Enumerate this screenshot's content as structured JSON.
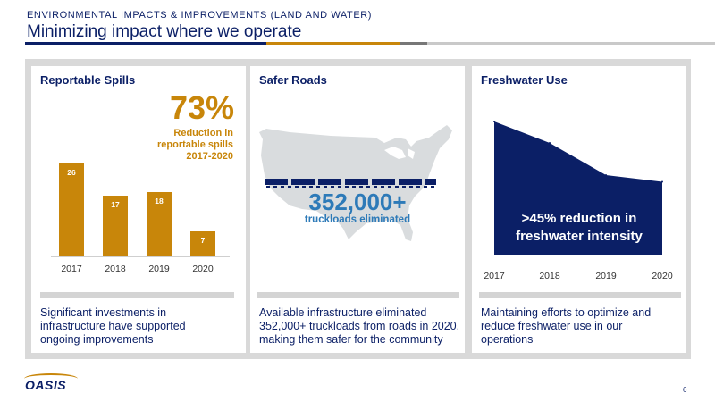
{
  "header": {
    "kicker": "ENVIRONMENTAL IMPACTS & IMPROVEMENTS (LAND AND WATER)",
    "title": "Minimizing impact where we operate"
  },
  "colors": {
    "navy": "#0b1f66",
    "gold": "#c8860a",
    "frame": "#d9d9d9"
  },
  "spills": {
    "title": "Reportable Spills",
    "big_stat": "73%",
    "reduction_lines": [
      "Reduction in",
      "reportable spills",
      "2017-2020"
    ],
    "description": "Significant investments in infrastructure have supported ongoing improvements"
  },
  "roads": {
    "title": "Safer Roads",
    "stat": "352,000+",
    "stat_label": "truckloads eliminated",
    "description": "Available infrastructure eliminated 352,000+ truckloads from roads in 2020, making them safer for the community"
  },
  "water": {
    "title": "Freshwater Use",
    "callout_lines": [
      ">45% reduction in",
      "freshwater intensity"
    ],
    "description": "Maintaining efforts to optimize and reduce freshwater use in our operations"
  },
  "chart_data": [
    {
      "type": "bar",
      "categories": [
        "2017",
        "2018",
        "2019",
        "2020"
      ],
      "values": [
        26,
        17,
        18,
        7
      ],
      "ylim": [
        0,
        30
      ]
    },
    {
      "type": "area",
      "categories": [
        "2017",
        "2018",
        "2019",
        "2020"
      ],
      "values": [
        100,
        84,
        60,
        55
      ],
      "ylim": [
        0,
        100
      ]
    }
  ],
  "footer": {
    "logo_text": "OASIS",
    "page_number": "6"
  }
}
